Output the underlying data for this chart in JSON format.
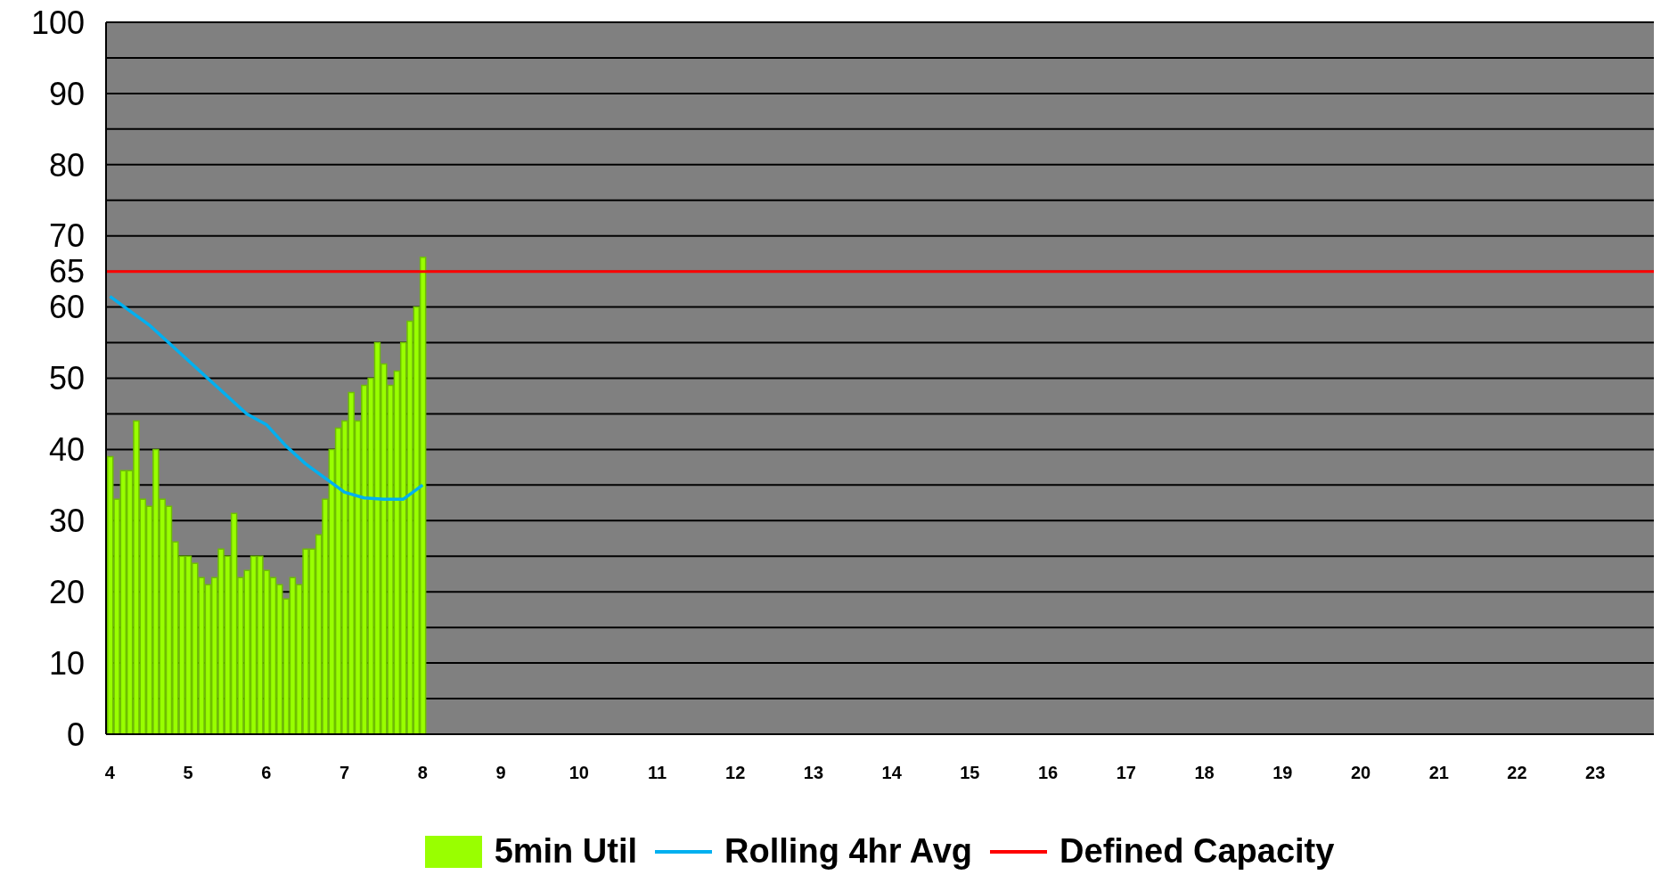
{
  "chart_data": {
    "type": "bar",
    "x": [
      4,
      4.0833,
      4.1667,
      4.25,
      4.3333,
      4.4167,
      4.5,
      4.5833,
      4.6667,
      4.75,
      4.8333,
      4.9167,
      5,
      5.0833,
      5.1667,
      5.25,
      5.3333,
      5.4167,
      5.5,
      5.5833,
      5.6667,
      5.75,
      5.8333,
      5.9167,
      6,
      6.0833,
      6.1667,
      6.25,
      6.3333,
      6.4167,
      6.5,
      6.5833,
      6.6667,
      6.75,
      6.8333,
      6.9167,
      7,
      7.0833,
      7.1667,
      7.25,
      7.3333,
      7.4167,
      7.5,
      7.5833,
      7.6667,
      7.75,
      7.8333,
      7.9167,
      8
    ],
    "series": [
      {
        "name": "5min Util",
        "color": "#99ff00",
        "values": [
          39,
          33,
          37,
          37,
          44,
          33,
          32,
          40,
          33,
          32,
          27,
          25,
          25,
          24,
          22,
          21,
          22,
          26,
          25,
          31,
          22,
          23,
          25,
          25,
          23,
          22,
          21,
          19,
          22,
          21,
          26,
          26,
          28,
          33,
          40,
          43,
          44,
          48,
          44,
          49,
          50,
          55,
          52,
          49,
          51,
          55,
          58,
          60,
          67
        ]
      },
      {
        "name": "Rolling 4hr Avg",
        "type": "line",
        "color": "#00b0f0",
        "x": [
          4,
          4.25,
          4.5,
          4.75,
          5,
          5.25,
          5.5,
          5.75,
          6,
          6.25,
          6.5,
          6.75,
          7,
          7.25,
          7.5,
          7.75,
          8
        ],
        "values": [
          61.5,
          59.5,
          57.5,
          55,
          52.5,
          50,
          47.5,
          45,
          43.5,
          40.5,
          38,
          36,
          34,
          33.2,
          33,
          33,
          35
        ]
      }
    ],
    "xlim": [
      3.95,
      23.75
    ],
    "xticks": [
      4,
      5,
      6,
      7,
      8,
      9,
      10,
      11,
      12,
      13,
      14,
      15,
      16,
      17,
      18,
      19,
      20,
      21,
      22,
      23
    ],
    "ylim": [
      0,
      100
    ],
    "yticks": [
      0,
      {
        "value": 5,
        "label": null
      },
      10,
      {
        "value": 15,
        "label": null
      },
      20,
      {
        "value": 25,
        "label": null
      },
      30,
      {
        "value": 35,
        "label": null
      },
      40,
      {
        "value": 45,
        "label": null
      },
      50,
      {
        "value": 55,
        "label": null
      },
      60,
      65,
      70,
      {
        "value": 75,
        "label": null
      },
      80,
      {
        "value": 85,
        "label": null
      },
      90,
      {
        "value": 95,
        "label": null
      },
      100
    ],
    "ref_lines": [
      {
        "axis": "y",
        "value": 65,
        "label": "Defined Capacity",
        "color": "#ff0000"
      }
    ],
    "grid": "y",
    "legend": "bottom",
    "marker": "none"
  }
}
